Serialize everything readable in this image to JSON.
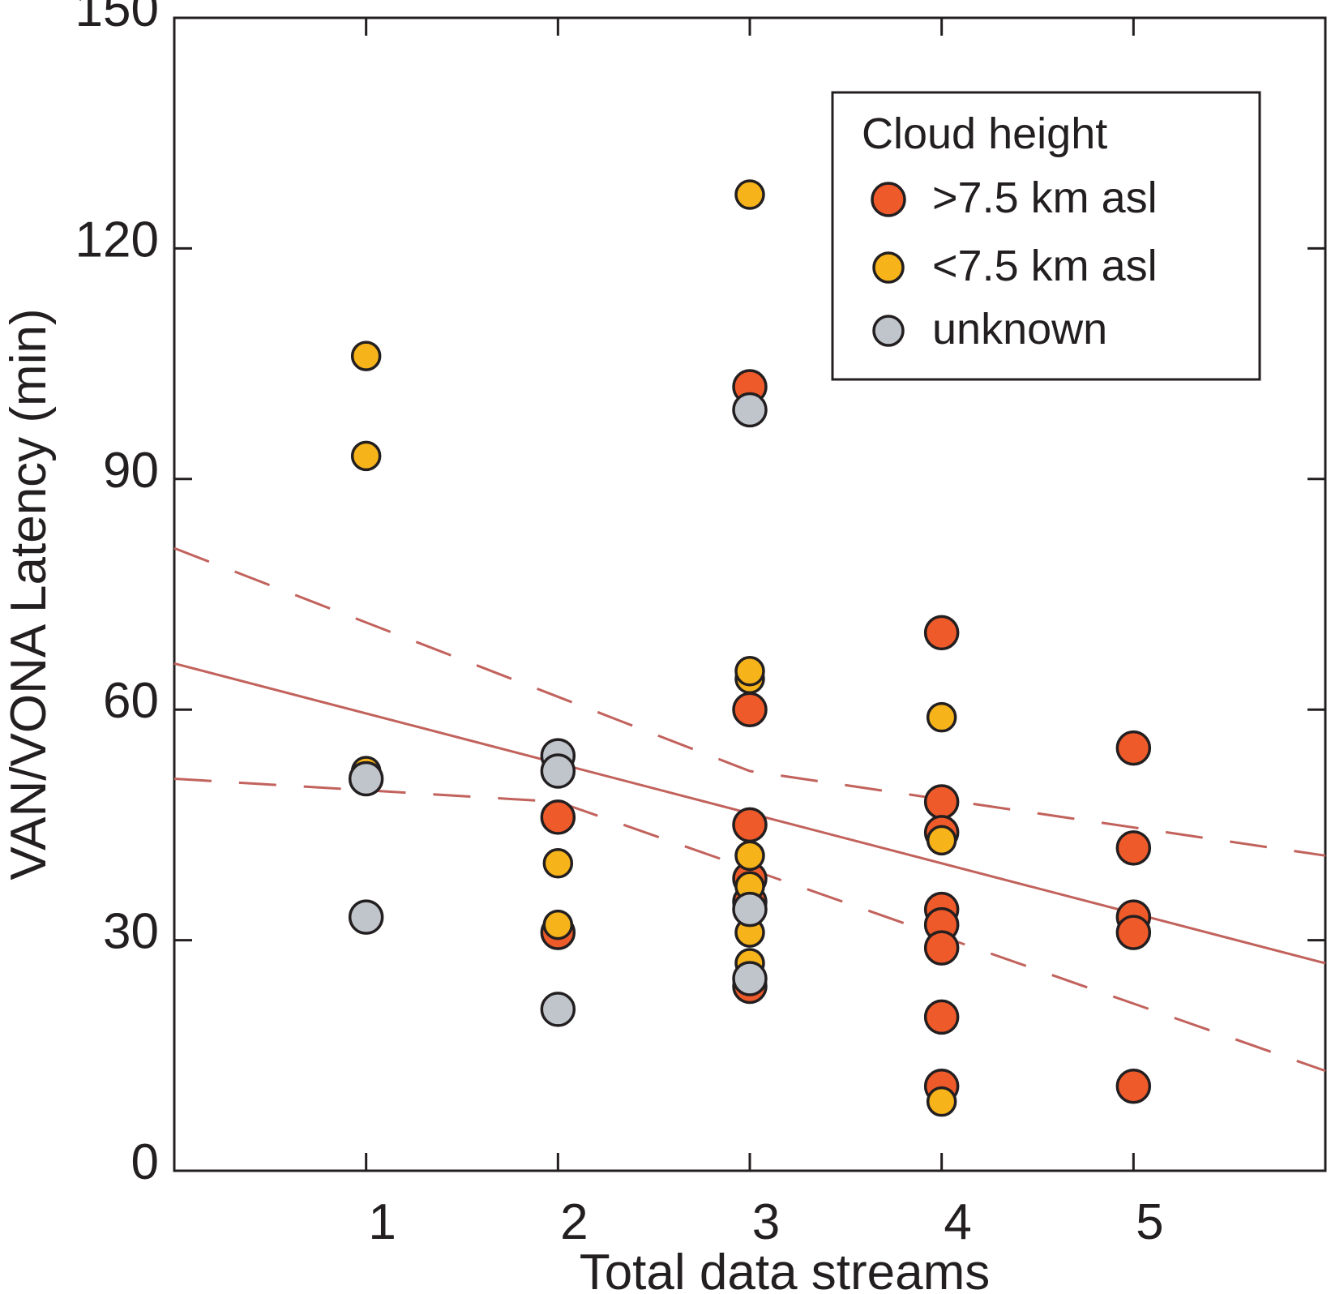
{
  "chart_data": {
    "type": "scatter",
    "title": "",
    "xlabel": "Total data streams",
    "ylabel": "VAN/VONA Latency (min)",
    "xlim": [
      0,
      6
    ],
    "ylim": [
      0,
      150
    ],
    "x_ticks": [
      "1",
      "2",
      "3",
      "4",
      "5"
    ],
    "y_ticks": [
      "0",
      "30",
      "60",
      "90",
      "120",
      "150"
    ],
    "x_tick_values": [
      1,
      2,
      3,
      4,
      5
    ],
    "y_tick_values": [
      0,
      30,
      60,
      90,
      120,
      150
    ],
    "legend": {
      "title": "Cloud height",
      "position": "top-right",
      "entries": [
        {
          "key": "high",
          "label": ">7.5 km asl",
          "color": "#ef5a2a"
        },
        {
          "key": "low",
          "label": "<7.5 km asl",
          "color": "#f7b31a"
        },
        {
          "key": "unknown",
          "label": "unknown",
          "color": "#c0c4cb"
        }
      ]
    },
    "series": [
      {
        "name": ">7.5 km asl",
        "key": "high",
        "points": [
          [
            2,
            46
          ],
          [
            2,
            31
          ],
          [
            3,
            102
          ],
          [
            3,
            60
          ],
          [
            3,
            45
          ],
          [
            3,
            38
          ],
          [
            3,
            35
          ],
          [
            3,
            24
          ],
          [
            4,
            70
          ],
          [
            4,
            48
          ],
          [
            4,
            44
          ],
          [
            4,
            34
          ],
          [
            4,
            32
          ],
          [
            4,
            29
          ],
          [
            4,
            20
          ],
          [
            4,
            11
          ],
          [
            5,
            55
          ],
          [
            5,
            42
          ],
          [
            5,
            33
          ],
          [
            5,
            31
          ],
          [
            5,
            11
          ]
        ]
      },
      {
        "name": "<7.5 km asl",
        "key": "low",
        "points": [
          [
            1,
            106
          ],
          [
            1,
            93
          ],
          [
            1,
            52
          ],
          [
            2,
            40
          ],
          [
            2,
            32
          ],
          [
            3,
            127
          ],
          [
            3,
            64
          ],
          [
            3,
            65
          ],
          [
            3,
            41
          ],
          [
            3,
            37
          ],
          [
            3,
            31
          ],
          [
            3,
            27
          ],
          [
            4,
            59
          ],
          [
            4,
            43
          ],
          [
            4,
            9
          ]
        ]
      },
      {
        "name": "unknown",
        "key": "unknown",
        "points": [
          [
            1,
            51
          ],
          [
            1,
            33
          ],
          [
            2,
            54
          ],
          [
            2,
            52
          ],
          [
            2,
            21
          ],
          [
            3,
            99
          ],
          [
            3,
            34
          ],
          [
            3,
            25
          ]
        ]
      }
    ],
    "lines": [
      {
        "name": "regression fit",
        "style": "solid",
        "color": "#c2625c",
        "x": [
          0,
          6
        ],
        "y": [
          66,
          27
        ]
      },
      {
        "name": "upper confidence bound",
        "style": "dashed",
        "color": "#c2625c",
        "x": [
          0,
          3,
          6
        ],
        "y": [
          81,
          52,
          41
        ]
      },
      {
        "name": "lower confidence bound",
        "style": "dashed",
        "color": "#c2625c",
        "x": [
          0,
          2,
          6
        ],
        "y": [
          51,
          48,
          13
        ]
      }
    ]
  }
}
